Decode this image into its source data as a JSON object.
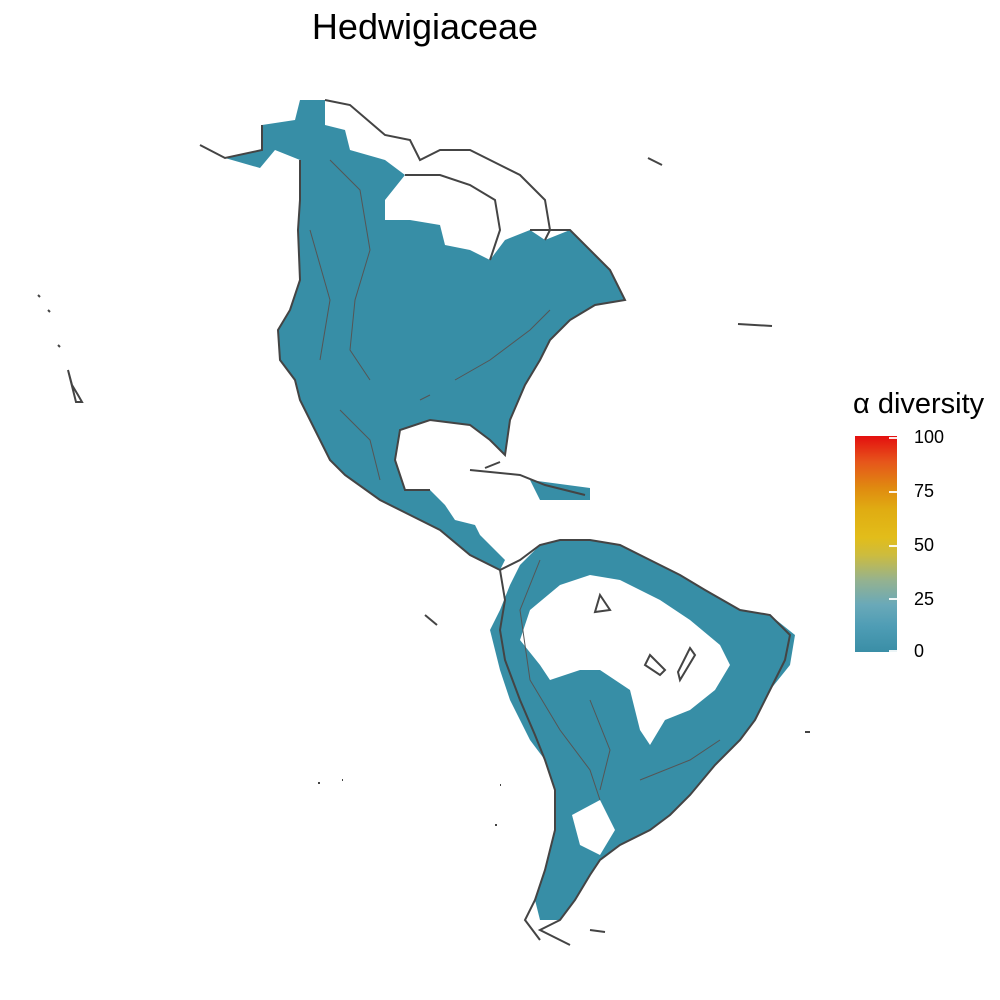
{
  "title": "Hedwigiaceae",
  "legend": {
    "title": "α diversity",
    "ticks": [
      "100",
      "75",
      "50",
      "25",
      "0"
    ],
    "color_low": "#3a8ea6",
    "color_mid": "#e2bd1a",
    "color_high": "#e40f0f"
  },
  "map": {
    "region": "Americas",
    "fill_color": "#378ea6",
    "outline_color": "#444444"
  }
}
